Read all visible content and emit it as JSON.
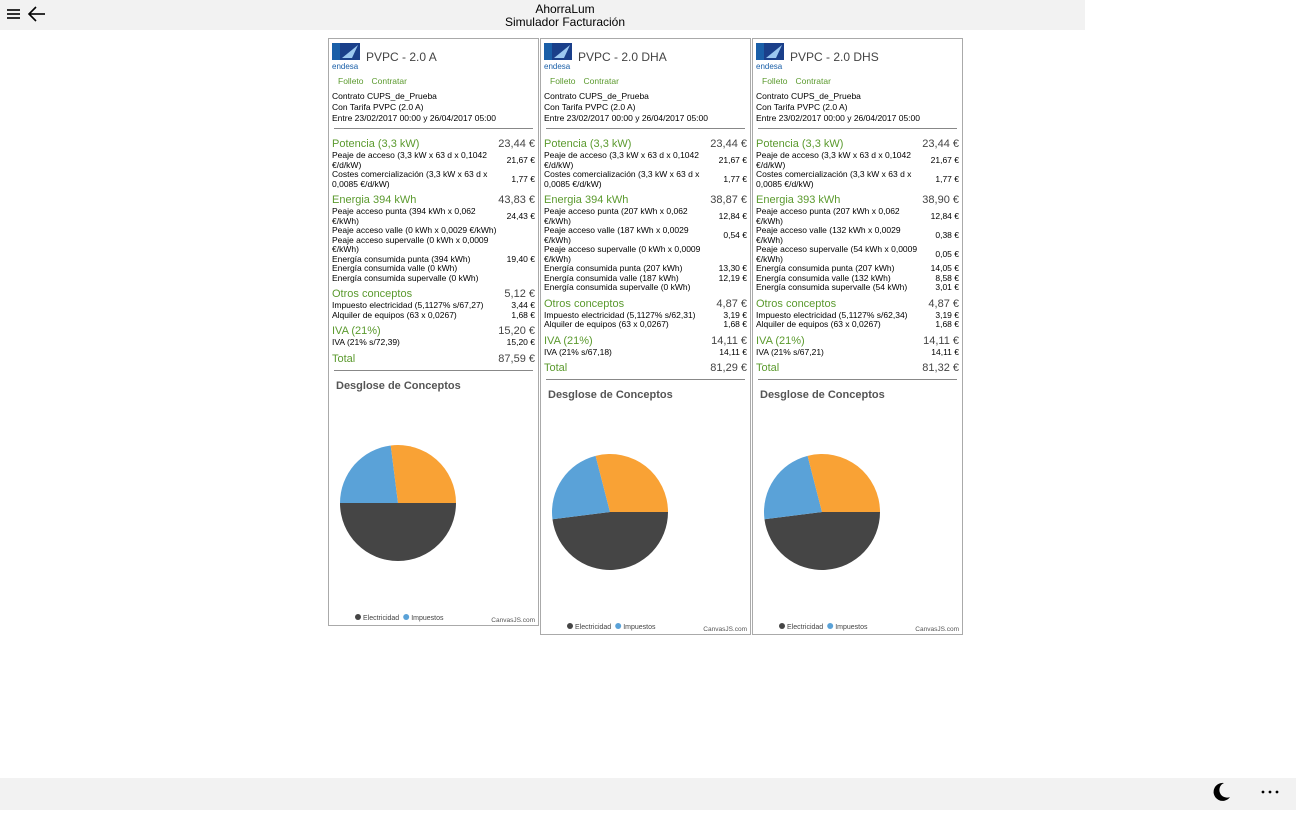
{
  "header": {
    "app": "AhorraLum",
    "title": "Simulador Facturación"
  },
  "cards": [
    {
      "logo": "endesa",
      "title": "PVPC - 2.0 A",
      "links": [
        "Folleto",
        "Contratar"
      ],
      "contract": [
        "Contrato CUPS_de_Prueba",
        "Con Tarifa PVPC (2.0 A)",
        "Entre 23/02/2017 00:00 y 26/04/2017 05:00"
      ],
      "sections": [
        {
          "name": "Potencia (3,3 kW)",
          "amount": "23,44 €",
          "items": [
            {
              "label": "Peaje de acceso (3,3 kW x 63 d x 0,1042 €/d/kW)",
              "amount": "21,67 €"
            },
            {
              "label": "Costes comercialización (3,3 kW x 63 d x 0,0085 €/d/kW)",
              "amount": "1,77 €"
            }
          ]
        },
        {
          "name": "Energia 394 kWh",
          "amount": "43,83 €",
          "items": [
            {
              "label": "Peaje acceso punta (394 kWh x 0,062 €/kWh)",
              "amount": "24,43 €"
            },
            {
              "label": "Peaje acceso valle (0 kWh x 0,0029 €/kWh)"
            },
            {
              "label": "Peaje acceso supervalle (0 kWh x 0,0009 €/kWh)"
            },
            {
              "label": "Energía consumida punta (394 kWh)",
              "amount": "19,40 €"
            },
            {
              "label": "Energía consumida valle (0 kWh)"
            },
            {
              "label": "Energía consumida supervalle (0 kWh)"
            }
          ]
        },
        {
          "name": "Otros conceptos",
          "amount": "5,12 €",
          "items": [
            {
              "label": "Impuesto electricidad (5,1127% s/67,27)",
              "amount": "3,44 €"
            },
            {
              "label": "Alquiler de equipos (63 x 0,0267)",
              "amount": "1,68 €"
            }
          ]
        },
        {
          "name": "IVA (21%)",
          "amount": "15,20 €",
          "items": [
            {
              "label": "IVA (21% s/72,39)",
              "amount": "15,20 €"
            }
          ]
        }
      ],
      "total": {
        "label": "Total",
        "amount": "87,59 €"
      },
      "chart": {
        "type": "pie",
        "title": "Desglose de Conceptos",
        "credit": "CanvasJS.com",
        "slices": [
          {
            "name": "Electricidad",
            "color": "#454545",
            "value": 50
          },
          {
            "name": "Impuestos",
            "color": "#5aa2d8",
            "value": 23
          },
          {
            "color": "#f9a235",
            "value": 27
          }
        ]
      }
    },
    {
      "logo": "endesa",
      "title": "PVPC - 2.0 DHA",
      "links": [
        "Folleto",
        "Contratar"
      ],
      "contract": [
        "Contrato CUPS_de_Prueba",
        "Con Tarifa PVPC (2.0 A)",
        "Entre 23/02/2017 00:00 y 26/04/2017 05:00"
      ],
      "sections": [
        {
          "name": "Potencia (3,3 kW)",
          "amount": "23,44 €",
          "items": [
            {
              "label": "Peaje de acceso (3,3 kW x 63 d x 0,1042 €/d/kW)",
              "amount": "21,67 €"
            },
            {
              "label": "Costes comercialización (3,3 kW x 63 d x 0,0085 €/d/kW)",
              "amount": "1,77 €"
            }
          ]
        },
        {
          "name": "Energia 394 kWh",
          "amount": "38,87 €",
          "items": [
            {
              "label": "Peaje acceso punta (207 kWh x 0,062 €/kWh)",
              "amount": "12,84 €"
            },
            {
              "label": "Peaje acceso valle (187 kWh x 0,0029 €/kWh)",
              "amount": "0,54 €"
            },
            {
              "label": "Peaje acceso supervalle (0 kWh x 0,0009 €/kWh)"
            },
            {
              "label": "Energía consumida punta (207 kWh)",
              "amount": "13,30 €"
            },
            {
              "label": "Energía consumida valle (187 kWh)",
              "amount": "12,19 €"
            },
            {
              "label": "Energía consumida supervalle (0 kWh)"
            }
          ]
        },
        {
          "name": "Otros conceptos",
          "amount": "4,87 €",
          "items": [
            {
              "label": "Impuesto electricidad (5,1127% s/62,31)",
              "amount": "3,19 €"
            },
            {
              "label": "Alquiler de equipos (63 x 0,0267)",
              "amount": "1,68 €"
            }
          ]
        },
        {
          "name": "IVA (21%)",
          "amount": "14,11 €",
          "items": [
            {
              "label": "IVA (21% s/67,18)",
              "amount": "14,11 €"
            }
          ]
        }
      ],
      "total": {
        "label": "Total",
        "amount": "81,29 €"
      },
      "chart": {
        "type": "pie",
        "title": "Desglose de Conceptos",
        "credit": "CanvasJS.com",
        "slices": [
          {
            "name": "Electricidad",
            "color": "#454545",
            "value": 48
          },
          {
            "name": "Impuestos",
            "color": "#5aa2d8",
            "value": 23
          },
          {
            "color": "#f9a235",
            "value": 29
          }
        ]
      }
    },
    {
      "logo": "endesa",
      "title": "PVPC - 2.0 DHS",
      "links": [
        "Folleto",
        "Contratar"
      ],
      "contract": [
        "Contrato CUPS_de_Prueba",
        "Con Tarifa PVPC (2.0 A)",
        "Entre 23/02/2017 00:00 y 26/04/2017 05:00"
      ],
      "sections": [
        {
          "name": "Potencia (3,3 kW)",
          "amount": "23,44 €",
          "items": [
            {
              "label": "Peaje de acceso (3,3 kW x 63 d x 0,1042 €/d/kW)",
              "amount": "21,67 €"
            },
            {
              "label": "Costes comercialización (3,3 kW x 63 d x 0,0085 €/d/kW)",
              "amount": "1,77 €"
            }
          ]
        },
        {
          "name": "Energia 393 kWh",
          "amount": "38,90 €",
          "items": [
            {
              "label": "Peaje acceso punta (207 kWh x 0,062 €/kWh)",
              "amount": "12,84 €"
            },
            {
              "label": "Peaje acceso valle (132 kWh x 0,0029 €/kWh)",
              "amount": "0,38 €"
            },
            {
              "label": "Peaje acceso supervalle (54 kWh x 0,0009 €/kWh)",
              "amount": "0,05 €"
            },
            {
              "label": "Energía consumida punta (207 kWh)",
              "amount": "14,05 €"
            },
            {
              "label": "Energía consumida valle (132 kWh)",
              "amount": "8,58 €"
            },
            {
              "label": "Energía consumida supervalle (54 kWh)",
              "amount": "3,01 €"
            }
          ]
        },
        {
          "name": "Otros conceptos",
          "amount": "4,87 €",
          "items": [
            {
              "label": "Impuesto electricidad (5,1127% s/62,34)",
              "amount": "3,19 €"
            },
            {
              "label": "Alquiler de equipos (63 x 0,0267)",
              "amount": "1,68 €"
            }
          ]
        },
        {
          "name": "IVA (21%)",
          "amount": "14,11 €",
          "items": [
            {
              "label": "IVA (21% s/67,21)",
              "amount": "14,11 €"
            }
          ]
        }
      ],
      "total": {
        "label": "Total",
        "amount": "81,32 €"
      },
      "chart": {
        "type": "pie",
        "title": "Desglose de Conceptos",
        "credit": "CanvasJS.com",
        "slices": [
          {
            "name": "Electricidad",
            "color": "#454545",
            "value": 48
          },
          {
            "name": "Impuestos",
            "color": "#5aa2d8",
            "value": 23
          },
          {
            "color": "#f9a235",
            "value": 29
          }
        ]
      }
    }
  ]
}
